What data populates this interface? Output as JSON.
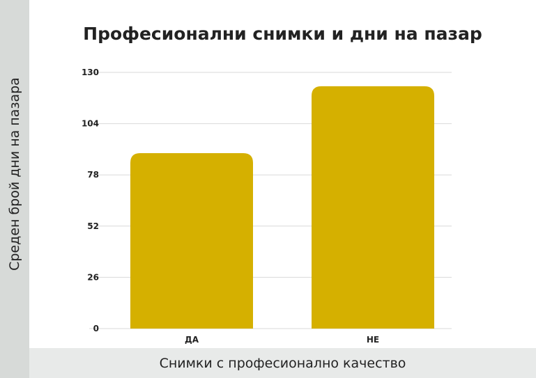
{
  "chart_data": {
    "type": "bar",
    "title": "Професионални снимки и дни на пазар",
    "xlabel": "Снимки с професионално качество",
    "ylabel": "Среден брой дни на пазара",
    "categories": [
      "ДА",
      "НЕ"
    ],
    "values": [
      89,
      123
    ],
    "ylim": [
      0,
      130
    ],
    "yticks": [
      0,
      26,
      52,
      78,
      104,
      130
    ],
    "grid": true,
    "legend": "none"
  },
  "colors": {
    "bar": "#d5b000",
    "grid": "#d9d9d9"
  }
}
